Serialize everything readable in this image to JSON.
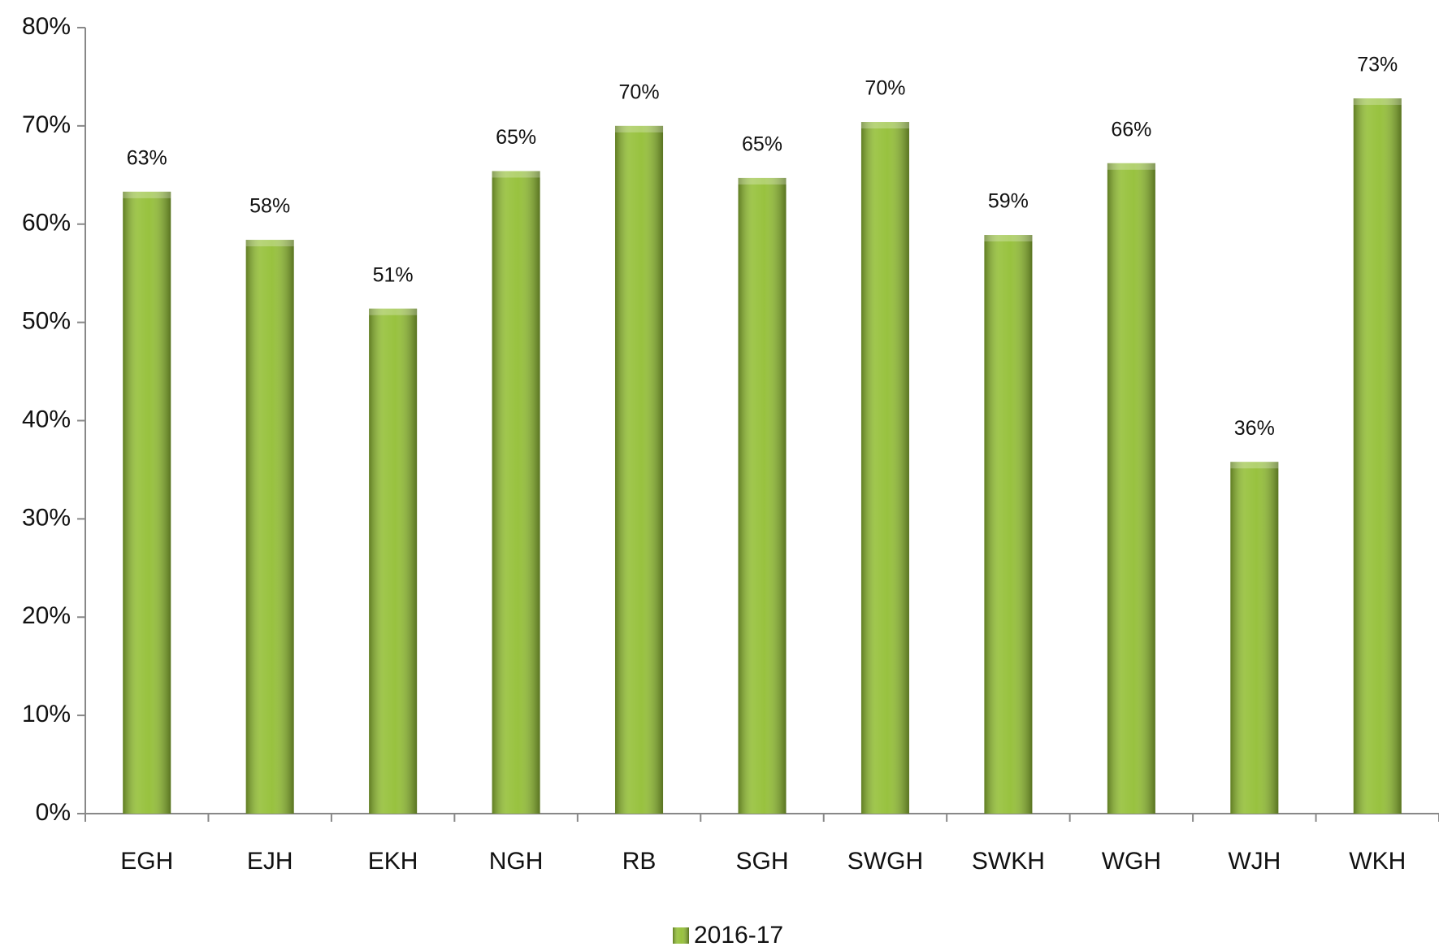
{
  "chart_data": {
    "type": "bar",
    "categories": [
      "EGH",
      "EJH",
      "EKH",
      "NGH",
      "RB",
      "SGH",
      "SWGH",
      "SWKH",
      "WGH",
      "WJH",
      "WKH"
    ],
    "series": [
      {
        "name": "2016-17",
        "color": "#93bf35",
        "values": [
          63.3,
          58.4,
          51.4,
          65.4,
          70,
          64.7,
          70.4,
          58.9,
          66.2,
          35.8,
          72.8
        ],
        "value_labels": [
          "63%",
          "58%",
          "51%",
          "65%",
          "70%",
          "65%",
          "70%",
          "59%",
          "66%",
          "36%",
          "73%"
        ]
      }
    ],
    "ylim": [
      0,
      80
    ],
    "yticks": [
      {
        "value": 0,
        "label": "0%"
      },
      {
        "value": 10,
        "label": "10%"
      },
      {
        "value": 20,
        "label": "20%"
      },
      {
        "value": 30,
        "label": "30%"
      },
      {
        "value": 40,
        "label": "40%"
      },
      {
        "value": 50,
        "label": "50%"
      },
      {
        "value": 60,
        "label": "60%"
      },
      {
        "value": 70,
        "label": "70%"
      },
      {
        "value": 80,
        "label": "80%"
      }
    ],
    "legend": "bottom"
  }
}
